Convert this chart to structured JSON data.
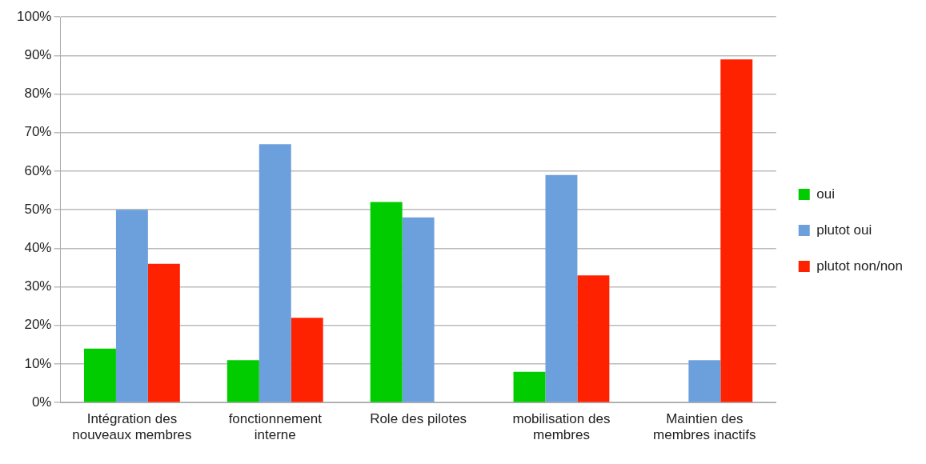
{
  "chart_data": {
    "type": "bar",
    "categories": [
      "Intégration des nouveaux membres",
      "fonctionnement interne",
      "Role des pilotes",
      "mobilisation des membres",
      "Maintien des membres inactifs"
    ],
    "series": [
      {
        "name": "oui",
        "color": "#00cc00",
        "values": [
          14,
          11,
          52,
          8,
          0
        ]
      },
      {
        "name": "plutot oui",
        "color": "#6ca0dc",
        "values": [
          50,
          67,
          48,
          59,
          11
        ]
      },
      {
        "name": "plutot non/non",
        "color": "#ff2200",
        "values": [
          36,
          22,
          0,
          33,
          89
        ]
      }
    ],
    "ylim": [
      0,
      100
    ],
    "yticks": [
      {
        "value": 0,
        "label": "0%"
      },
      {
        "value": 10,
        "label": "10%"
      },
      {
        "value": 20,
        "label": "20%"
      },
      {
        "value": 30,
        "label": "30%"
      },
      {
        "value": 40,
        "label": "40%"
      },
      {
        "value": 50,
        "label": "50%"
      },
      {
        "value": 60,
        "label": "60%"
      },
      {
        "value": 70,
        "label": "70%"
      },
      {
        "value": 80,
        "label": "80%"
      },
      {
        "value": 90,
        "label": "90%"
      },
      {
        "value": 100,
        "label": "100%"
      }
    ],
    "grid": "y",
    "legend": "right"
  }
}
